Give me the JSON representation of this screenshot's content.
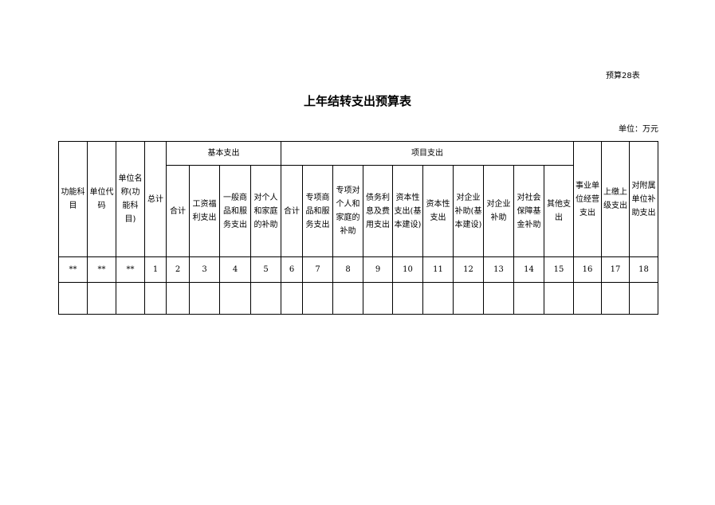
{
  "form_number": "预算28表",
  "title": "上年结转支出预算表",
  "unit": "单位：万元",
  "table": {
    "left_headers": [
      "功能科目",
      "单位代码",
      "单位名称(功能科目)",
      "总计"
    ],
    "group_basic": "基本支出",
    "basic_columns": [
      "合计",
      "工资福利支出",
      "一般商品和服务支出",
      "对个人和家庭的补助"
    ],
    "group_project": "项目支出",
    "project_columns": [
      "合计",
      "专项商品和服务支出",
      "专项对个人和家庭的补助",
      "债务利息及费用支出",
      "资本性支出(基本建设)",
      "资本性支出",
      "对企业补助(基本建设)",
      "对企业补助",
      "对社会保障基金补助",
      "其他支出"
    ],
    "right_headers": [
      "事业单位经营支出",
      "上缴上级支出",
      "对附属单位补助支出"
    ],
    "number_row": [
      "**",
      "**",
      "**",
      "1",
      "2",
      "3",
      "4",
      "5",
      "6",
      "7",
      "8",
      "9",
      "10",
      "11",
      "12",
      "13",
      "14",
      "15",
      "16",
      "17",
      "18"
    ],
    "empty_rows": 1
  }
}
